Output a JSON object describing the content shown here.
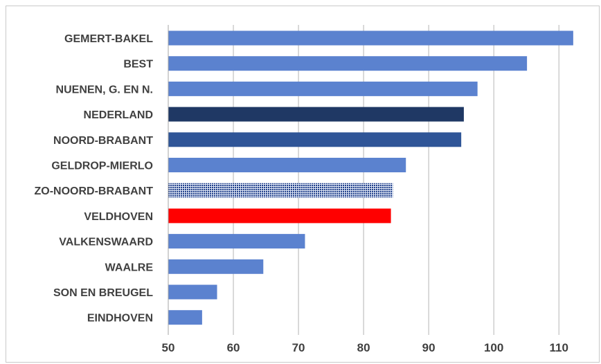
{
  "chart_data": {
    "type": "bar",
    "orientation": "horizontal",
    "title": "",
    "xlabel": "",
    "ylabel": "",
    "xlim": [
      50,
      112
    ],
    "x_ticks": [
      50,
      60,
      70,
      80,
      90,
      100,
      110
    ],
    "grid": "vertical",
    "legend": "none",
    "categories": [
      "GEMERT-BAKEL",
      "BEST",
      "NUENEN, G. EN N.",
      "NEDERLAND",
      "NOORD-BRABANT",
      "GELDROP-MIERLO",
      "ZO-NOORD-BRABANT",
      "VELDHOVEN",
      "VALKENSWAARD",
      "WAALRE",
      "SON EN BREUGEL",
      "EINDHOVEN"
    ],
    "values": [
      112.2,
      105.1,
      97.5,
      95.4,
      95.0,
      86.5,
      84.5,
      84.2,
      71.0,
      64.6,
      57.5,
      55.2
    ],
    "bar_styles": [
      "default",
      "default",
      "default",
      "dark",
      "medium",
      "default",
      "pattern",
      "highlight",
      "default",
      "default",
      "default",
      "default"
    ],
    "colors": {
      "default": "#5b82cf",
      "dark": "#1f3864",
      "medium": "#2f5597",
      "pattern": "#1f3f8a",
      "highlight": "#ff0000",
      "grid": "#b4b4b4",
      "text": "#404040"
    }
  }
}
